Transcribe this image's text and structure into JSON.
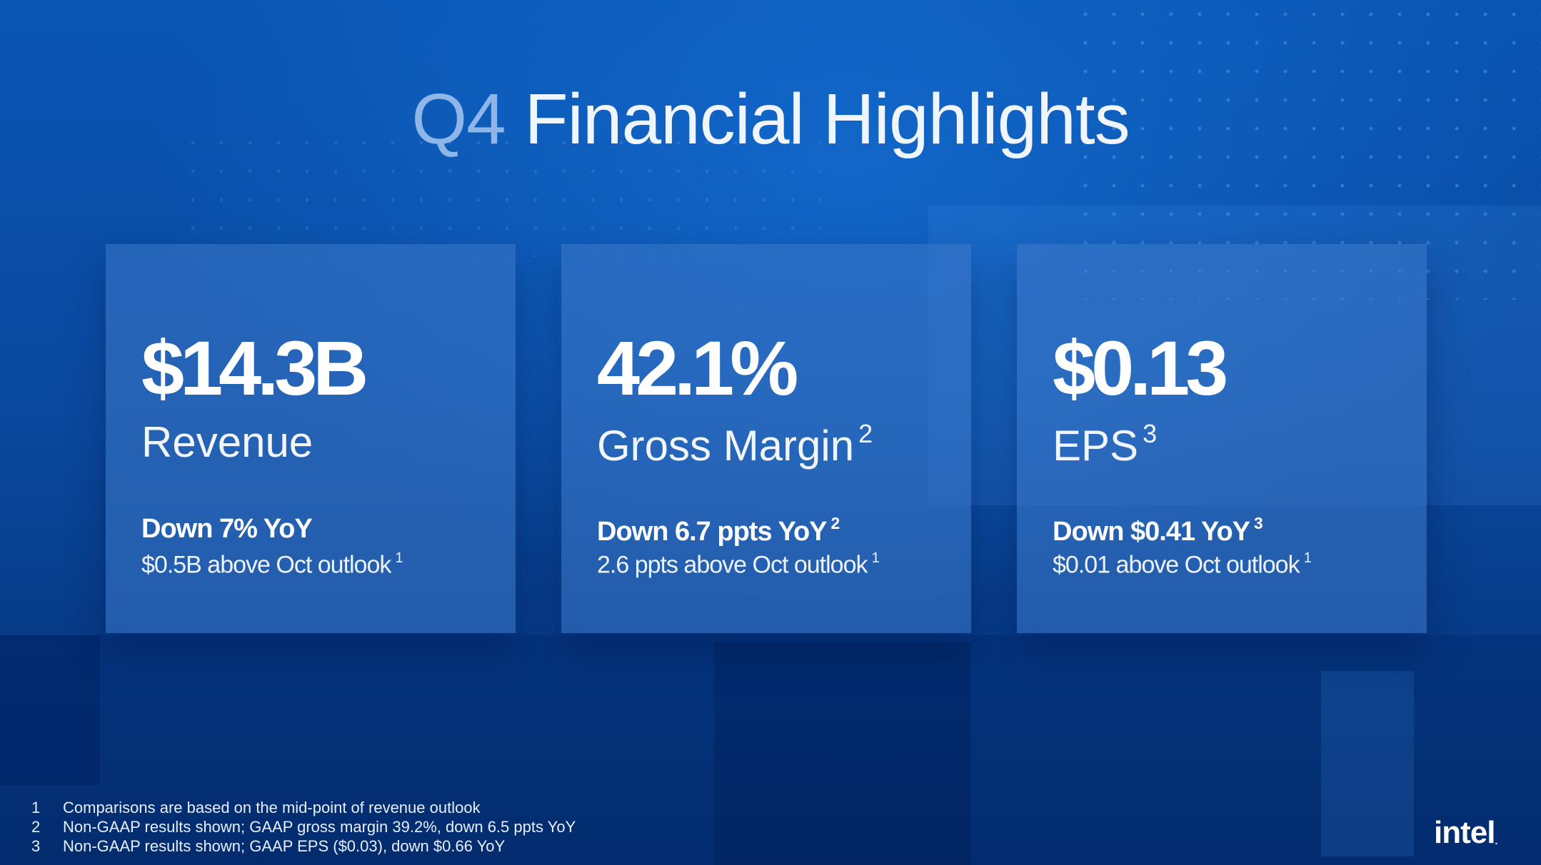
{
  "slide": {
    "title_prefix": "Q4",
    "title_rest": "Financial Highlights"
  },
  "cards": [
    {
      "metric": "$14.3B",
      "label": "Revenue",
      "label_sup": "",
      "change": "Down 7% YoY",
      "change_sup": "",
      "note": "$0.5B above Oct outlook",
      "note_sup": "1"
    },
    {
      "metric": "42.1%",
      "label": "Gross Margin",
      "label_sup": "2",
      "change": "Down 6.7 ppts YoY",
      "change_sup": "2",
      "note": "2.6 ppts above Oct outlook",
      "note_sup": "1"
    },
    {
      "metric": "$0.13",
      "label": "EPS",
      "label_sup": "3",
      "change": "Down $0.41 YoY",
      "change_sup": "3",
      "note": "$0.01 above Oct outlook",
      "note_sup": "1"
    }
  ],
  "footnotes": [
    {
      "num": "1",
      "text": "Comparisons are based on the mid-point of revenue outlook"
    },
    {
      "num": "2",
      "text": "Non-GAAP results shown; GAAP gross margin 39.2%, down 6.5 ppts YoY"
    },
    {
      "num": "3",
      "text": "Non-GAAP results shown; GAAP EPS ($0.03), down $0.66 YoY"
    }
  ],
  "logo": {
    "text": "intel",
    "mark": "."
  },
  "colors": {
    "background": "#0a4aa0",
    "title_prefix": "#8fb6e8",
    "card": "#3c78c8"
  }
}
